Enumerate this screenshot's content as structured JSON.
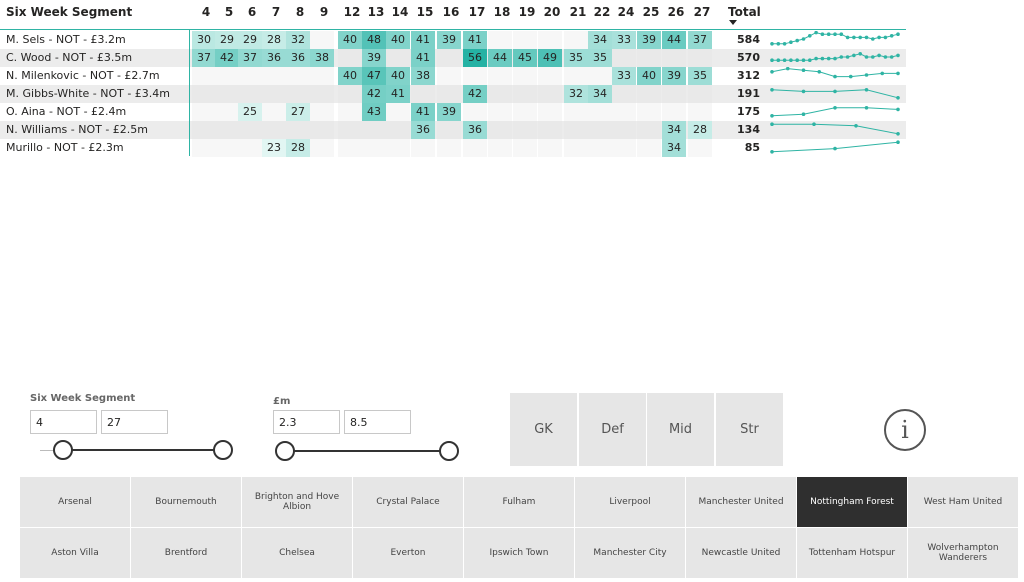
{
  "matrix": {
    "title": "Six Week Segment",
    "columns": [
      "4",
      "5",
      "6",
      "7",
      "8",
      "9",
      "12",
      "13",
      "14",
      "15",
      "16",
      "17",
      "18",
      "19",
      "20",
      "21",
      "22",
      "24",
      "25",
      "26",
      "27"
    ],
    "total_label": "Total",
    "rows": [
      {
        "label": "M. Sels - NOT - £3.2m",
        "cells": [
          "30",
          "29",
          "29",
          "28",
          "32",
          "",
          "40",
          "48",
          "40",
          "41",
          "39",
          "41",
          "",
          "",
          "",
          "",
          "34",
          "33",
          "39",
          "44",
          "37"
        ],
        "total": "584",
        "spark": [
          2,
          2,
          2,
          3,
          4,
          5,
          7,
          9,
          8,
          8,
          8,
          8,
          6,
          6,
          6,
          6,
          5,
          6,
          6,
          7,
          8
        ]
      },
      {
        "label": "C. Wood - NOT - £3.5m",
        "cells": [
          "37",
          "42",
          "37",
          "36",
          "36",
          "38",
          "",
          "39",
          "",
          "41",
          "",
          "56",
          "44",
          "45",
          "49",
          "35",
          "35",
          "",
          "",
          "",
          ""
        ],
        "total": "570",
        "spark": [
          3,
          3,
          3,
          3,
          3,
          3,
          3,
          4,
          4,
          4,
          4,
          5,
          5,
          6,
          7,
          5,
          5,
          6,
          5,
          5,
          6
        ]
      },
      {
        "label": "N. Milenkovic - NOT - £2.7m",
        "cells": [
          "",
          "",
          "",
          "",
          "",
          "",
          "40",
          "47",
          "40",
          "38",
          "",
          "",
          "",
          "",
          "",
          "",
          "",
          "33",
          "40",
          "39",
          "35"
        ],
        "total": "312",
        "spark": [
          7,
          9,
          8,
          7,
          4,
          4,
          5,
          6,
          6
        ]
      },
      {
        "label": "M. Gibbs-White - NOT - £3.4m",
        "cells": [
          "",
          "",
          "",
          "",
          "",
          "",
          "",
          "42",
          "41",
          "",
          "",
          "42",
          "",
          "",
          "",
          "32",
          "34",
          "",
          "",
          "",
          ""
        ],
        "total": "191",
        "spark": [
          7,
          6,
          6,
          7,
          2
        ]
      },
      {
        "label": "O. Aina - NOT - £2.4m",
        "cells": [
          "",
          "",
          "25",
          "",
          "27",
          "",
          "",
          "43",
          "",
          "41",
          "39",
          "",
          "",
          "",
          "",
          "",
          "",
          "",
          "",
          "",
          ""
        ],
        "total": "175",
        "spark": [
          2,
          3,
          7,
          7,
          6
        ]
      },
      {
        "label": "N. Williams - NOT - £2.5m",
        "cells": [
          "",
          "",
          "",
          "",
          "",
          "",
          "",
          "",
          "",
          "36",
          "",
          "36",
          "",
          "",
          "",
          "",
          "",
          "",
          "",
          "34",
          "28"
        ],
        "total": "134",
        "spark": [
          8,
          8,
          7,
          2
        ]
      },
      {
        "label": "Murillo - NOT - £2.3m",
        "cells": [
          "",
          "",
          "",
          "23",
          "28",
          "",
          "",
          "",
          "",
          "",
          "",
          "",
          "",
          "",
          "",
          "",
          "",
          "",
          "",
          "34",
          ""
        ],
        "total": "85",
        "spark": [
          2,
          4,
          8
        ]
      }
    ]
  },
  "slicers": {
    "segment": {
      "title": "Six Week Segment",
      "min": "4",
      "max": "27"
    },
    "price": {
      "title": "£m",
      "min": "2.3",
      "max": "8.5"
    }
  },
  "positions": [
    "GK",
    "Def",
    "Mid",
    "Str"
  ],
  "info_label": "i",
  "teams": [
    [
      "Arsenal",
      "Bournemouth",
      "Brighton and Hove Albion",
      "Crystal Palace",
      "Fulham",
      "Liverpool",
      "Manchester United",
      "Nottingham Forest",
      "West Ham United"
    ],
    [
      "Aston Villa",
      "Brentford",
      "Chelsea",
      "Everton",
      "Ipswich Town",
      "Manchester City",
      "Newcastle United",
      "Tottenham Hotspur",
      "Wolverhampton Wanderers"
    ]
  ],
  "selected_team": "Nottingham Forest",
  "colors": {
    "accent": "#2fb4a4",
    "selected_team": "#2f2f2f"
  }
}
